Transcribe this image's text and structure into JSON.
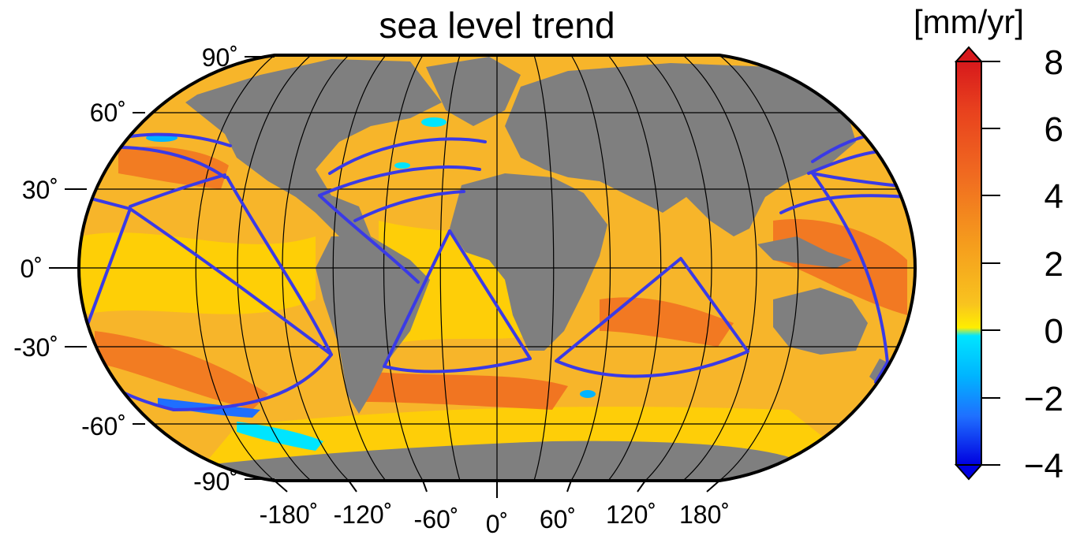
{
  "figure": {
    "title": "sea level trend",
    "projection": "Robinson"
  },
  "latitude_labels": [
    "90˚",
    "60˚",
    "30˚",
    "0˚",
    "-30˚",
    "-60˚",
    "-90˚"
  ],
  "longitude_labels": [
    "-180˚",
    "-120˚",
    "-60˚",
    "0˚",
    "60˚",
    "120˚",
    "180˚"
  ],
  "colorbar": {
    "unit": "[mm/yr]",
    "tick_labels": [
      "8",
      "6",
      "4",
      "2",
      "0",
      "−2",
      "−4"
    ],
    "range": [
      -4,
      8
    ],
    "colors": {
      "dark_red": "#d7191c",
      "red": "#e8411e",
      "orange_red": "#f06a20",
      "orange": "#f59c1d",
      "yellow_orange": "#f8c31f",
      "yellow": "#ffee00",
      "cyan": "#00e5ff",
      "sky_blue": "#00b4ff",
      "blue": "#1f6fff",
      "dark_blue": "#0000e0"
    }
  },
  "map_colors": {
    "land": "#7f7f7f",
    "ocean_base": "#f7b52a",
    "track_lines": "#3a3ae6"
  }
}
